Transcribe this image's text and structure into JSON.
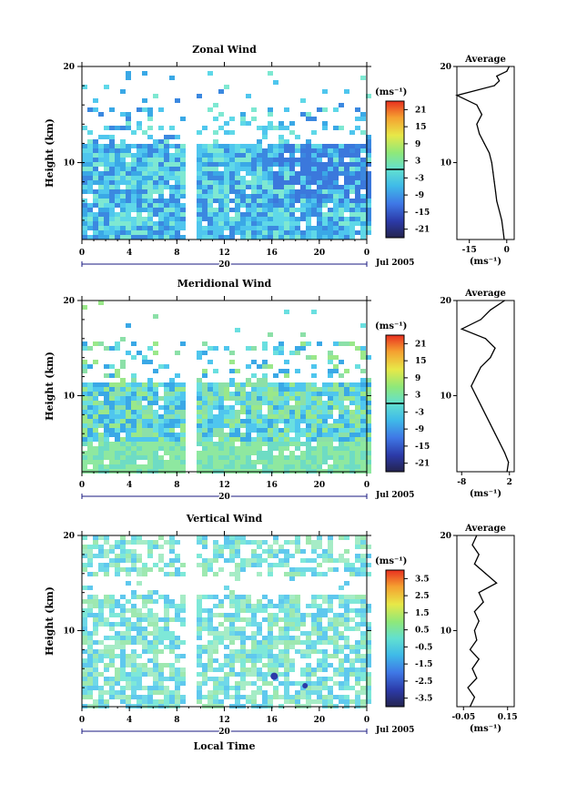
{
  "chart_data": [
    {
      "type": "heatmap",
      "title": "Zonal Wind",
      "ylabel": "Height (km)",
      "unit_label": "(ms⁻¹)",
      "x_ticks": [
        "0",
        "4",
        "8",
        "12",
        "16",
        "20",
        "0"
      ],
      "date_day": "20",
      "date_month": "Jul 2005",
      "xlim": [
        0,
        24
      ],
      "ylim": [
        2,
        20
      ],
      "y_ticks": [
        "20",
        "10"
      ],
      "colorbar": {
        "ticks": [
          "21",
          "15",
          "9",
          "3",
          "-3",
          "-9",
          "-15",
          "-21"
        ],
        "range": [
          -24,
          24
        ],
        "zero_line": 0
      },
      "profile": {
        "title": "Average",
        "xlabel": "(ms⁻¹)",
        "x_ticks": [
          "-15",
          "0"
        ],
        "xlim": [
          -20,
          3
        ],
        "y_ticks": [
          "20",
          "10"
        ],
        "points": [
          [
            -1,
            2
          ],
          [
            -1.5,
            3
          ],
          [
            -2,
            4
          ],
          [
            -3,
            5
          ],
          [
            -4,
            6
          ],
          [
            -4.5,
            7
          ],
          [
            -5,
            8
          ],
          [
            -5.5,
            9
          ],
          [
            -6,
            10
          ],
          [
            -7,
            11
          ],
          [
            -9,
            12
          ],
          [
            -11,
            13
          ],
          [
            -12,
            14
          ],
          [
            -10,
            15
          ],
          [
            -12,
            16
          ],
          [
            -20,
            17
          ],
          [
            -5,
            18
          ],
          [
            -3,
            18.5
          ],
          [
            -4,
            19
          ],
          [
            0,
            19.5
          ],
          [
            1,
            20
          ]
        ]
      }
    },
    {
      "type": "heatmap",
      "title": "Meridional Wind",
      "ylabel": "Height (km)",
      "unit_label": "(ms⁻¹)",
      "x_ticks": [
        "0",
        "4",
        "8",
        "12",
        "16",
        "20",
        "0"
      ],
      "date_day": "20",
      "date_month": "Jul 2005",
      "xlim": [
        0,
        24
      ],
      "ylim": [
        2,
        20
      ],
      "y_ticks": [
        "20",
        "10"
      ],
      "colorbar": {
        "ticks": [
          "21",
          "15",
          "9",
          "3",
          "-3",
          "-9",
          "-15",
          "-21"
        ],
        "range": [
          -24,
          24
        ],
        "zero_line": 0
      },
      "profile": {
        "title": "Average",
        "xlabel": "(ms⁻¹)",
        "x_ticks": [
          "-8",
          "2"
        ],
        "xlim": [
          -9,
          3
        ],
        "y_ticks": [
          "20",
          "10"
        ],
        "points": [
          [
            1.5,
            2
          ],
          [
            1.8,
            3
          ],
          [
            1,
            4
          ],
          [
            0,
            5
          ],
          [
            -1,
            6
          ],
          [
            -2,
            7
          ],
          [
            -3,
            8
          ],
          [
            -4,
            9
          ],
          [
            -5,
            10
          ],
          [
            -6,
            11
          ],
          [
            -5,
            12
          ],
          [
            -4,
            13
          ],
          [
            -2,
            14
          ],
          [
            -1,
            15
          ],
          [
            -3,
            16
          ],
          [
            -8,
            17
          ],
          [
            -4,
            18
          ],
          [
            -2,
            19
          ],
          [
            1,
            20
          ]
        ]
      }
    },
    {
      "type": "heatmap",
      "title": "Vertical Wind",
      "ylabel": "Height (km)",
      "unit_label": "(ms⁻¹)",
      "x_ticks": [
        "0",
        "4",
        "8",
        "12",
        "16",
        "20",
        "0"
      ],
      "date_day": "20",
      "date_month": "Jul 2005",
      "xlabel": "Local Time",
      "xlim": [
        0,
        24
      ],
      "ylim": [
        2,
        20
      ],
      "y_ticks": [
        "20",
        "10"
      ],
      "colorbar": {
        "ticks": [
          "3.5",
          "2.5",
          "1.5",
          "0.5",
          "-0.5",
          "-1.5",
          "-2.5",
          "-3.5"
        ],
        "range": [
          -4,
          4
        ],
        "zero_line": null
      },
      "profile": {
        "title": "Average",
        "xlabel": "(ms⁻¹)",
        "x_ticks": [
          "-0.05",
          "0.15"
        ],
        "xlim": [
          -0.08,
          0.18
        ],
        "y_ticks": [
          "20",
          "10"
        ],
        "points": [
          [
            -0.02,
            2
          ],
          [
            0.0,
            3
          ],
          [
            -0.03,
            4
          ],
          [
            0.01,
            5
          ],
          [
            -0.01,
            6
          ],
          [
            0.02,
            7
          ],
          [
            -0.02,
            8
          ],
          [
            0.01,
            9
          ],
          [
            0.0,
            10
          ],
          [
            0.02,
            11
          ],
          [
            0.0,
            12
          ],
          [
            0.04,
            13
          ],
          [
            0.02,
            14
          ],
          [
            0.1,
            15
          ],
          [
            0.05,
            16
          ],
          [
            0.0,
            17
          ],
          [
            0.02,
            18
          ],
          [
            -0.01,
            19
          ],
          [
            0.01,
            20
          ]
        ]
      }
    }
  ]
}
